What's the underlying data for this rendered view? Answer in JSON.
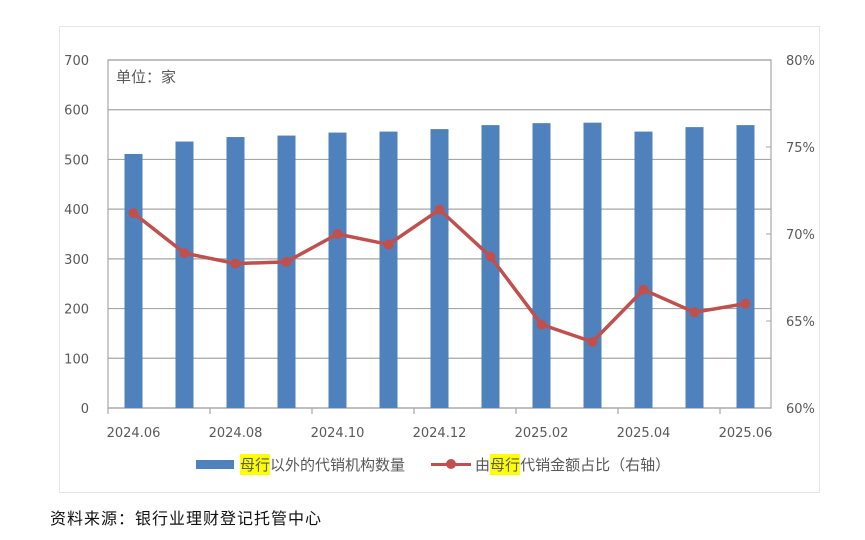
{
  "chart_data": {
    "type": "bar+line",
    "title": "",
    "unit_note": "单位：家",
    "categories": [
      "2024.06",
      "2024.07",
      "2024.08",
      "2024.09",
      "2024.10",
      "2024.11",
      "2024.12",
      "2025.01",
      "2025.02",
      "2025.03",
      "2025.04",
      "2025.05",
      "2025.06"
    ],
    "x_tick_labels": [
      "2024.06",
      "2024.08",
      "2024.10",
      "2024.12",
      "2025.02",
      "2025.04",
      "2025.06"
    ],
    "series": [
      {
        "name": "母行以外的代销机构数量",
        "type": "bar",
        "axis": "left",
        "color": "#4f81bd",
        "values": [
          511,
          536,
          545,
          548,
          554,
          556,
          561,
          569,
          573,
          574,
          556,
          565,
          569
        ]
      },
      {
        "name": "由母行代销金额占比（右轴）",
        "type": "line",
        "axis": "right",
        "color": "#c0504d",
        "values": [
          71.2,
          68.9,
          68.3,
          68.4,
          70.0,
          69.4,
          71.4,
          68.7,
          64.8,
          63.8,
          66.8,
          65.5,
          66.0
        ]
      }
    ],
    "left_axis": {
      "ylim": [
        0,
        700
      ],
      "ticks": [
        "0",
        "100",
        "200",
        "300",
        "400",
        "500",
        "600",
        "700"
      ]
    },
    "right_axis": {
      "ylim": [
        60,
        80
      ],
      "ticks": [
        "60%",
        "65%",
        "70%",
        "75%",
        "80%"
      ]
    },
    "grid": true,
    "legend_position": "bottom"
  },
  "legend": {
    "bar": {
      "highlight": "母行",
      "rest": "以外的代销机构数量"
    },
    "line": {
      "prefix": "由",
      "highlight": "母行",
      "rest": "代销金额占比（右轴）"
    }
  },
  "source": "资料来源：银行业理财登记托管中心"
}
